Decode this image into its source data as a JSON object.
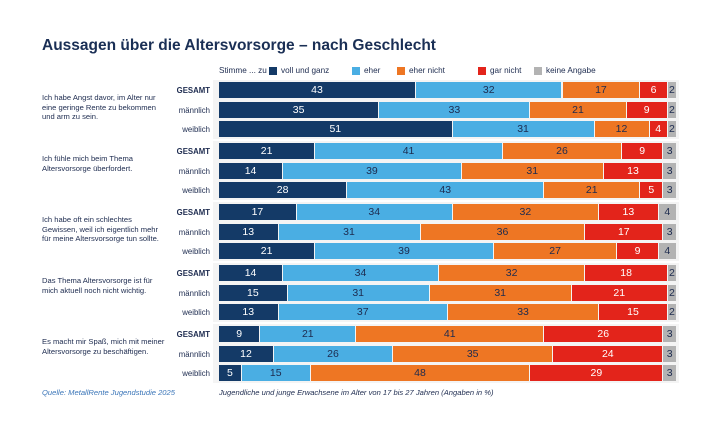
{
  "title": "Aussagen über die Altersvorsorge – nach Geschlecht",
  "legend_prefix": "Stimme ... zu",
  "source": "Quelle: MetallRente Jugendstudie 2025",
  "note": "Jugendliche und junge Erwachsene im Alter von 17 bis 27 Jahren (Angaben in %)",
  "chart_data": {
    "type": "bar",
    "orientation": "horizontal",
    "stacked": true,
    "unit": "%",
    "series": [
      {
        "name": "voll und ganz",
        "color": "#143a67"
      },
      {
        "name": "eher",
        "color": "#4aaee3"
      },
      {
        "name": "eher nicht",
        "color": "#ee7623"
      },
      {
        "name": "gar nicht",
        "color": "#e3241b"
      },
      {
        "name": "keine Angabe",
        "color": "#b3b3b3"
      }
    ],
    "groups": [
      {
        "statement": "Ich habe Angst davor, im Alter nur eine geringe Rente zu bekommen und arm zu sein.",
        "rows": [
          {
            "label": "GESAMT",
            "values": [
              43,
              32,
              17,
              6,
              2
            ]
          },
          {
            "label": "männlich",
            "values": [
              35,
              33,
              21,
              9,
              2
            ]
          },
          {
            "label": "weiblich",
            "values": [
              51,
              31,
              12,
              4,
              2
            ]
          }
        ]
      },
      {
        "statement": "Ich fühle mich beim Thema Altersvorsorge überfordert.",
        "rows": [
          {
            "label": "GESAMT",
            "values": [
              21,
              41,
              26,
              9,
              3
            ]
          },
          {
            "label": "männlich",
            "values": [
              14,
              39,
              31,
              13,
              3
            ]
          },
          {
            "label": "weiblich",
            "values": [
              28,
              43,
              21,
              5,
              3
            ]
          }
        ]
      },
      {
        "statement": "Ich habe oft ein schlechtes Gewissen, weil ich eigentlich mehr für meine Altersvorsorge tun sollte.",
        "rows": [
          {
            "label": "GESAMT",
            "values": [
              17,
              34,
              32,
              13,
              4
            ]
          },
          {
            "label": "männlich",
            "values": [
              13,
              31,
              36,
              17,
              3
            ]
          },
          {
            "label": "weiblich",
            "values": [
              21,
              39,
              27,
              9,
              4
            ]
          }
        ]
      },
      {
        "statement": "Das Thema Altersvorsorge ist für mich aktuell noch nicht wichtig.",
        "rows": [
          {
            "label": "GESAMT",
            "values": [
              14,
              34,
              32,
              18,
              2
            ]
          },
          {
            "label": "männlich",
            "values": [
              15,
              31,
              31,
              21,
              2
            ]
          },
          {
            "label": "weiblich",
            "values": [
              13,
              37,
              33,
              15,
              2
            ]
          }
        ]
      },
      {
        "statement": "Es macht mir Spaß, mich mit meiner Altersvorsorge zu beschäftigen.",
        "rows": [
          {
            "label": "GESAMT",
            "values": [
              9,
              21,
              41,
              26,
              3
            ]
          },
          {
            "label": "männlich",
            "values": [
              12,
              26,
              35,
              24,
              3
            ]
          },
          {
            "label": "weiblich",
            "values": [
              5,
              15,
              48,
              29,
              3
            ]
          }
        ]
      }
    ]
  }
}
